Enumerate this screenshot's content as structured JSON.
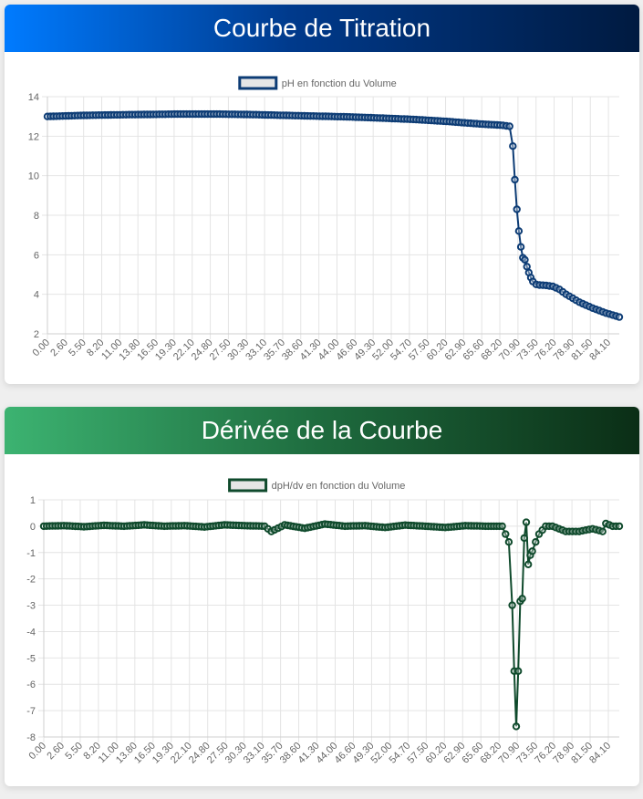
{
  "charts": [
    {
      "header": "Courbe de Titration",
      "color": "#0d3c75",
      "legend_fill": "#e6e6e6"
    },
    {
      "header": "Dérivée de la Courbe",
      "color": "#0f4a2c",
      "legend_fill": "#e6e6e6"
    }
  ],
  "chart_data": [
    {
      "type": "line",
      "title": "",
      "legend": [
        "pH en fonction du Volume"
      ],
      "xlabel": "",
      "ylabel": "",
      "ylim": [
        2,
        14
      ],
      "yticks": [
        2,
        4,
        6,
        8,
        10,
        12,
        14
      ],
      "xtick_labels": [
        "0.00",
        "2.60",
        "5.50",
        "8.20",
        "11.00",
        "13.80",
        "16.50",
        "19.30",
        "22.10",
        "24.80",
        "27.50",
        "30.30",
        "33.10",
        "35.70",
        "38.60",
        "41.30",
        "44.00",
        "46.60",
        "49.30",
        "52.00",
        "54.70",
        "57.50",
        "60.20",
        "62.90",
        "65.60",
        "68.20",
        "70.90",
        "73.50",
        "76.20",
        "78.90",
        "81.50",
        "84.10"
      ],
      "xlim": [
        0,
        86.0
      ],
      "series": [
        {
          "name": "pH en fonction du Volume",
          "x": [
            0,
            5,
            10,
            15,
            20,
            25,
            30,
            35,
            40,
            45,
            50,
            55,
            60,
            65,
            68.5,
            69.5,
            70.0,
            70.3,
            70.6,
            70.9,
            71.2,
            71.5,
            71.8,
            72.1,
            72.4,
            72.7,
            73.0,
            73.5,
            74.0,
            75.0,
            76.0,
            77.0,
            78.0,
            80.0,
            82.0,
            84.0,
            86.0
          ],
          "y": [
            13.0,
            13.05,
            13.08,
            13.1,
            13.12,
            13.12,
            13.1,
            13.06,
            13.02,
            12.98,
            12.92,
            12.85,
            12.75,
            12.62,
            12.55,
            12.5,
            11.5,
            9.8,
            8.3,
            7.2,
            6.4,
            5.85,
            5.75,
            5.4,
            5.1,
            4.85,
            4.65,
            4.5,
            4.47,
            4.45,
            4.4,
            4.25,
            4.0,
            3.6,
            3.3,
            3.05,
            2.85
          ]
        }
      ]
    },
    {
      "type": "line",
      "title": "",
      "legend": [
        "dpH/dv en fonction du Volume"
      ],
      "xlabel": "",
      "ylabel": "",
      "ylim": [
        -8,
        1
      ],
      "yticks": [
        -8,
        -7,
        -6,
        -5,
        -4,
        -3,
        -2,
        -1,
        0,
        1
      ],
      "xtick_labels": [
        "0.00",
        "2.60",
        "5.50",
        "8.20",
        "11.00",
        "13.80",
        "16.50",
        "19.30",
        "22.10",
        "24.80",
        "27.50",
        "30.30",
        "33.10",
        "35.70",
        "38.60",
        "41.30",
        "44.00",
        "46.60",
        "49.30",
        "52.00",
        "54.70",
        "57.50",
        "60.20",
        "62.90",
        "65.60",
        "68.20",
        "70.90",
        "73.50",
        "76.20",
        "78.90",
        "81.50",
        "84.10"
      ],
      "xlim": [
        0,
        86.0
      ],
      "series": [
        {
          "name": "dpH/dv en fonction du Volume",
          "x": [
            0,
            3,
            6,
            9,
            12,
            15,
            18,
            21,
            24,
            27,
            30,
            33,
            34,
            36,
            39,
            42,
            45,
            48,
            51,
            54,
            57,
            60,
            63,
            66,
            68.5,
            69.5,
            70.0,
            70.3,
            70.6,
            70.9,
            71.2,
            71.5,
            71.8,
            72.1,
            72.4,
            72.7,
            73.0,
            73.5,
            74.0,
            75.0,
            76.0,
            77.0,
            78.0,
            80.0,
            82.0,
            83.5,
            84.0,
            85.0,
            86.0
          ],
          "y": [
            0.0,
            0.02,
            -0.02,
            0.03,
            0.0,
            0.05,
            0.0,
            0.02,
            -0.03,
            0.05,
            0.02,
            0.0,
            -0.2,
            0.05,
            -0.08,
            0.08,
            0.0,
            0.02,
            -0.05,
            0.04,
            0.0,
            -0.05,
            0.02,
            0.0,
            0.0,
            -0.6,
            -3.0,
            -5.5,
            -7.6,
            -5.5,
            -2.85,
            -2.75,
            -0.45,
            0.15,
            -1.45,
            -1.1,
            -0.95,
            -0.6,
            -0.3,
            0.0,
            0.0,
            -0.1,
            -0.2,
            -0.2,
            -0.1,
            -0.2,
            0.1,
            0.0,
            0.0
          ]
        }
      ]
    }
  ]
}
